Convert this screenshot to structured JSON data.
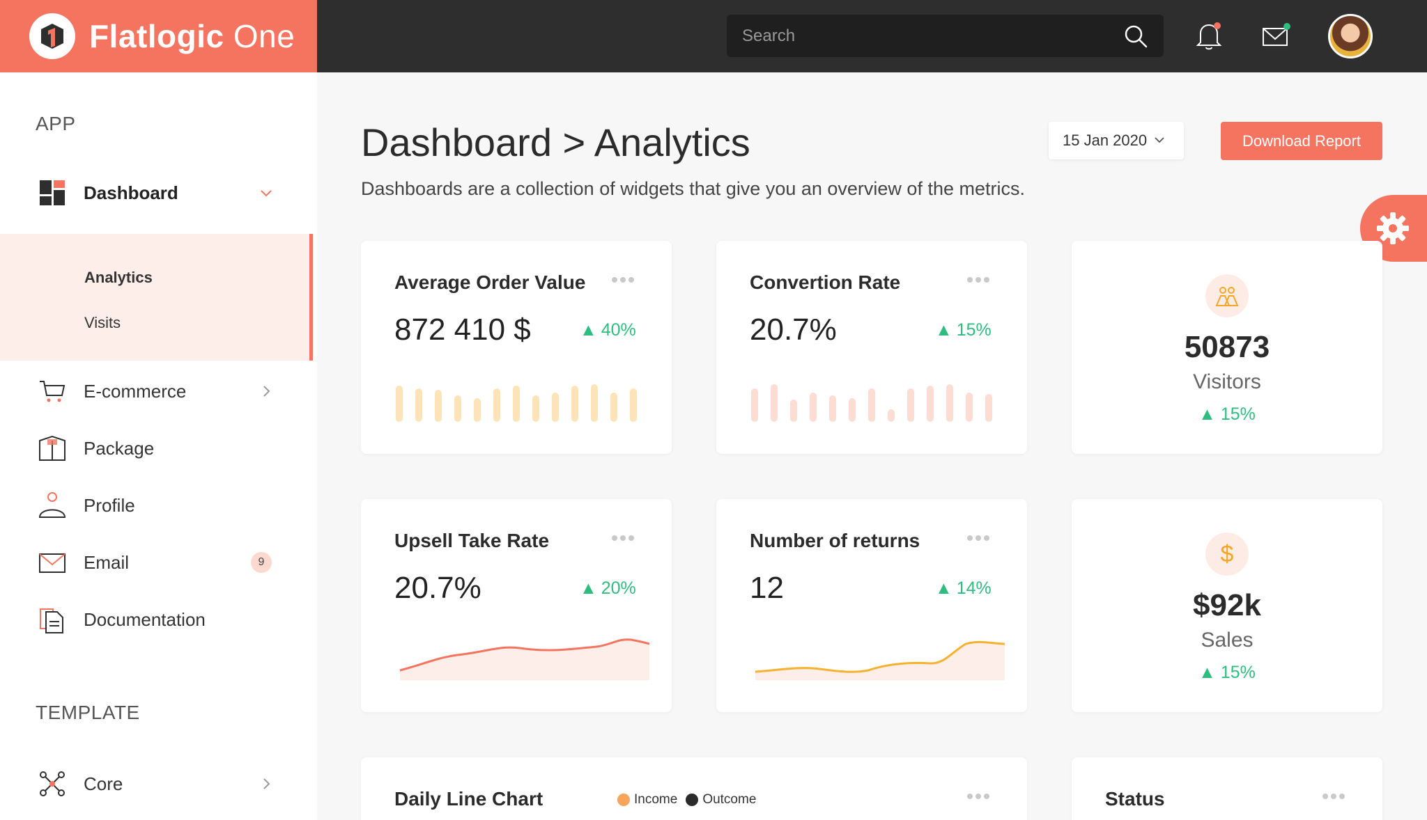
{
  "brand": {
    "bold": "Flatlogic",
    "light": " One"
  },
  "header": {
    "search_placeholder": "Search"
  },
  "sidebar": {
    "section_app": "APP",
    "section_template": "TEMPLATE",
    "items": [
      {
        "label": "Dashboard",
        "icon": "dashboard-icon"
      },
      {
        "label": "E-commerce",
        "icon": "cart-icon"
      },
      {
        "label": "Package",
        "icon": "package-icon"
      },
      {
        "label": "Profile",
        "icon": "profile-icon"
      },
      {
        "label": "Email",
        "icon": "email-icon",
        "badge": "9"
      },
      {
        "label": "Documentation",
        "icon": "documentation-icon"
      },
      {
        "label": "Core",
        "icon": "core-icon"
      }
    ],
    "sub_items": [
      {
        "label": "Analytics",
        "active": true
      },
      {
        "label": "Visits"
      }
    ]
  },
  "page": {
    "title": "Dashboard > Analytics",
    "subtitle": "Dashboards are a collection of widgets that give you an overview of the metrics.",
    "date": "15 Jan 2020",
    "download_label": "Download Report"
  },
  "cards": [
    {
      "title": "Average Order Value",
      "value": "872 410 $",
      "delta": "40%"
    },
    {
      "title": "Convertion Rate",
      "value": "20.7%",
      "delta": "15%"
    },
    {
      "title": "Upsell Take Rate",
      "value": "20.7%",
      "delta": "20%"
    },
    {
      "title": "Number of returns",
      "value": "12",
      "delta": "14%"
    },
    {
      "title": "Daily Line Chart"
    },
    {
      "title": "Status"
    }
  ],
  "stats": [
    {
      "value": "50873",
      "label": "Visitors",
      "delta": "15%",
      "icon": "users-icon"
    },
    {
      "value": "$92k",
      "label": "Sales",
      "delta": "15%",
      "icon": "dollar-icon"
    }
  ],
  "legend": {
    "income": "Income",
    "outcome": "Outcome"
  },
  "colors": {
    "accent": "#f47460",
    "positive": "#2ebd7f",
    "bar_yellow": "#fde3b8",
    "bar_pink": "#fcdcd3",
    "line_red": "#f47460",
    "line_yellow": "#f6b22e"
  }
}
